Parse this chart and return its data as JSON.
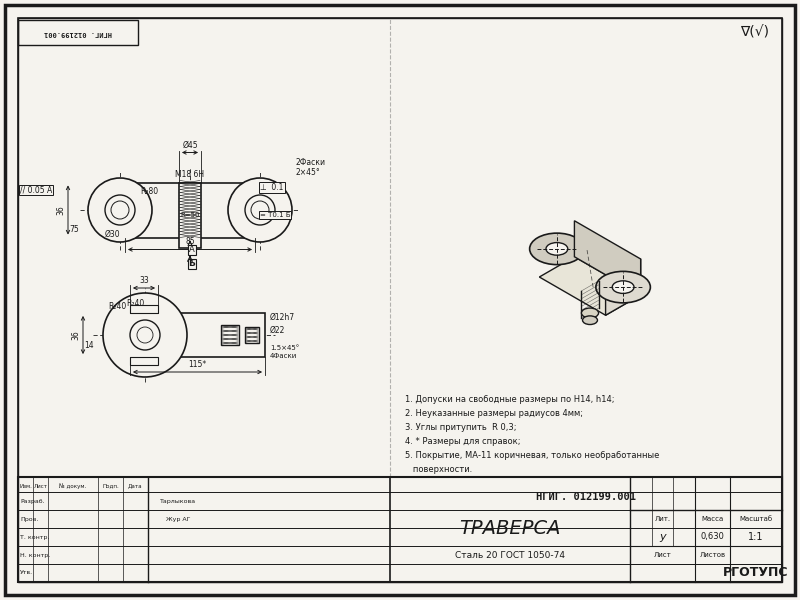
{
  "bg_color": "#f5f3ee",
  "line_color": "#1a1a1a",
  "hatch_color": "#1a1a1a",
  "paper_color": "#f5f3ee",
  "title_stamp_text": "НГИГ. 012199.001",
  "part_name": "ТРАВЕРСА",
  "material": "Сталь 20 ГОСТ 1050-74",
  "org": "РГОТУПС",
  "scale": "1:1",
  "mass": "0,630",
  "lit": "у",
  "top_stamp": "НГИГ. 012199.001",
  "roughness_mark": "∇(√)",
  "notes": [
    "1. Допуски на свободные размеры по H14, h14;",
    "2. Неуказанные размеры радиусов 4мм;",
    "3. Углы притупить  R 0,3;",
    "4. * Размеры для справок;",
    "5. Покрытие, МА-11 коричневая, только необработанные",
    "   поверхности."
  ],
  "col_labels": [
    "Изм.",
    "Лист",
    "№ докум.",
    "Подп.",
    "Дата"
  ],
  "row_labels": [
    "Разраб.",
    "Пров.",
    "Т. контр.",
    "Н. контр.",
    "Утв."
  ],
  "dev_name": "Тарлыкова",
  "check_name": "Жур АГ"
}
